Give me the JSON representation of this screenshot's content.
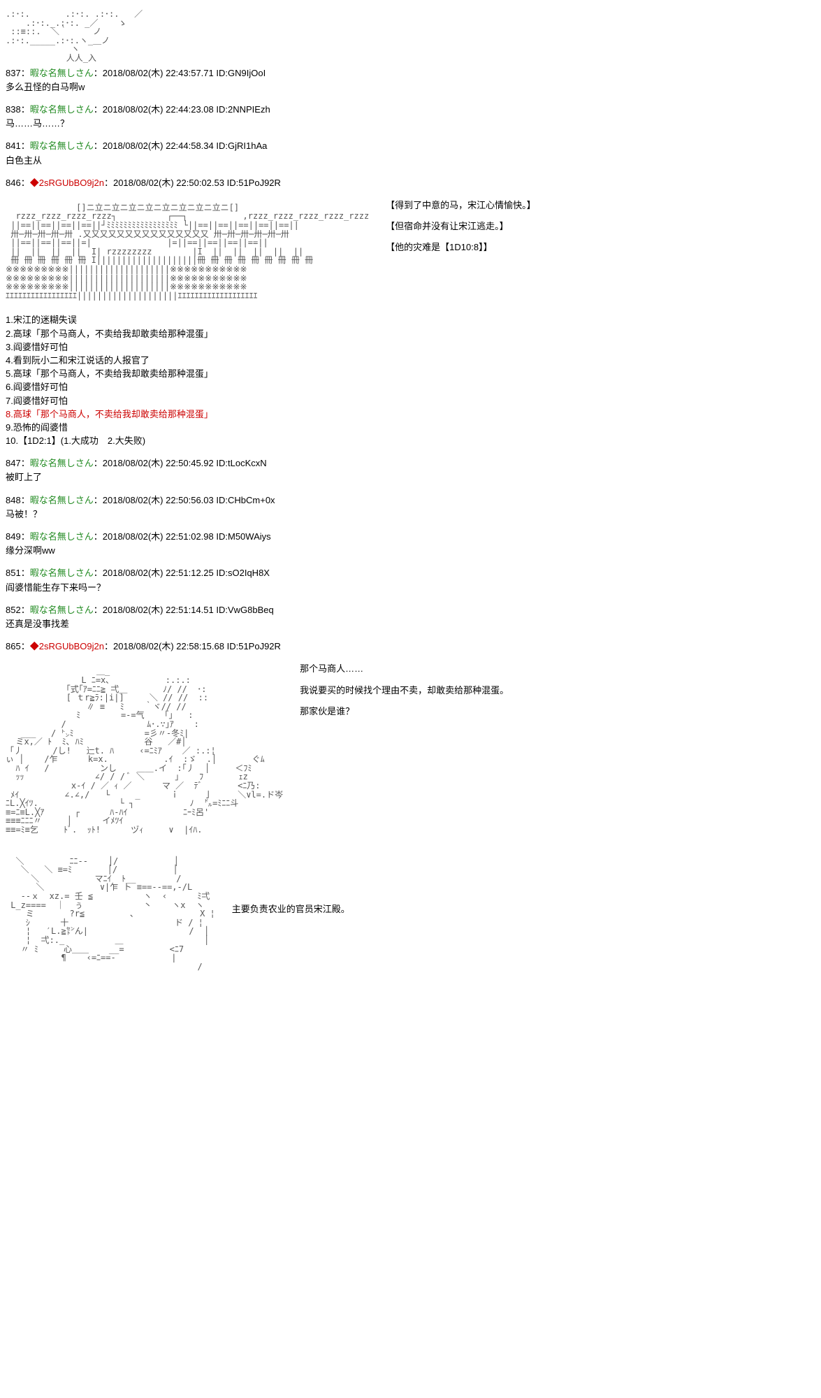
{
  "art_top": ".:･:.       .:･:. .:･:.   ／\n    .:･:._.:･:. _／    ゝ\n ::≡::.  ＼｀     ノ\n.:･:._____.:･:.ヽ_＿ノ\n             ヽ\n            人人_入",
  "posts": [
    {
      "num": "837",
      "name": "暇な名無しさん",
      "date": "2018/08/02(木) 22:43:57.71",
      "id": "ID:GN9IjOoI",
      "body": "多么丑怪的白马啊w"
    },
    {
      "num": "838",
      "name": "暇な名無しさん",
      "date": "2018/08/02(木) 22:44:23.08",
      "id": "ID:2NNPIEzh",
      "body": "马……马……？"
    },
    {
      "num": "841",
      "name": "暇な名無しさん",
      "date": "2018/08/02(木) 22:44:58.34",
      "id": "ID:GjRI1hAa",
      "body": "白色主从"
    }
  ],
  "post846": {
    "num": "846",
    "trip": "◆2sRGUbBO9j2n",
    "date": "2018/08/02(木) 22:50:02.53",
    "id": "ID:51PoJ92R"
  },
  "building_art": "              []ニ立ニ立ニ立ニ立ニ立ニ立ニ立ニ立ニ[]\n  rzzz_rzzz_rzzz_rzzz┐          ┌──┐           ,rzzz_rzzz_rzzz_rzzz_rzzz\n ||==||==||==||==||┘ﾐﾐﾐﾐﾐﾐﾐﾐﾐﾐﾐﾐﾐﾐﾐﾐﾐ └||==||==||==||==||==||\n 卅─卅─卅─卅─卅 .又又又又又又又又又又又又又又又 卅─卅─卅─卅─卅─卅\n ||==||==||==||=|               |=||==||==||==||==||\n ||  ||  ||  ||  I| rzzzzzzzz        |I  ||  ||  ||  ||  ||\n 冊 冊 冊 冊 冊 冊 I||||||||||||||||||||冊 冊 冊 冊 冊 冊 冊 冊 冊\n※※※※※※※※※||||||||||||||||||||※※※※※※※※※※※\n※※※※※※※※※||||||||||||||||||||※※※※※※※※※※※\n※※※※※※※※※||||||||||||||||||||※※※※※※※※※※※\nｴｴｴｴｴｴｴｴｴｴｴｴｴｴｴｴｴ||||||||||||||||||||ｴｴｴｴｴｴｴｴｴｴｴｴｴｴｴｴｴｴｴ",
  "side846": {
    "line1": "【得到了中意的马，宋江心情愉快。】",
    "line2": "【但宿命并没有让宋江逃走。】",
    "line3": "【他的灾难是【1D10:8】】"
  },
  "list": {
    "l1": "1.宋江的迷糊失误",
    "l2": "2.高球「那个马商人，不卖给我却敢卖给那种混蛋」",
    "l3": "3.阎婆惜好可怕",
    "l4": "4.看到阮小二和宋江说话的人报官了",
    "l5": "5.高球「那个马商人，不卖给我却敢卖给那种混蛋」",
    "l6": "6.阎婆惜好可怕",
    "l7": "7.阎婆惜好可怕",
    "l8": "8.高球「那个马商人，不卖给我却敢卖给那种混蛋」",
    "l9": "9.恐怖的阎婆惜",
    "l10": "10.【1D2:1】(1.大成功　2.大失败)"
  },
  "posts2": [
    {
      "num": "847",
      "name": "暇な名無しさん",
      "date": "2018/08/02(木) 22:50:45.92",
      "id": "ID:tLocKcxN",
      "body": "被盯上了"
    },
    {
      "num": "848",
      "name": "暇な名無しさん",
      "date": "2018/08/02(木) 22:50:56.03",
      "id": "ID:CHbCm+0x",
      "body": "马被！？"
    },
    {
      "num": "849",
      "name": "暇な名無しさん",
      "date": "2018/08/02(木) 22:51:02.98",
      "id": "ID:M50WAiys",
      "body": "缘分深啊ww"
    },
    {
      "num": "851",
      "name": "暇な名無しさん",
      "date": "2018/08/02(木) 22:51:12.25",
      "id": "ID:sO2IqH8X",
      "body": "阎婆惜能生存下来吗ー？"
    },
    {
      "num": "852",
      "name": "暇な名無しさん",
      "date": "2018/08/02(木) 22:51:14.51",
      "id": "ID:VwG8bBeq",
      "body": "还真是没事找差"
    }
  ],
  "post865": {
    "num": "865",
    "trip": "◆2sRGUbBO9j2n",
    "date": "2018/08/02(木) 22:58:15.68",
    "id": "ID:51PoJ92R"
  },
  "art865": "                  ＿_\n               L ﾆ=x､           :.:.:\n            ｢式｢ｱ=ﾆﾆ≧ 弌＿       ﾉ/ //  ･:\n            [ ｔr≧ﾗ:|i|]     ＼ // //  ::\n                ∥ ≡   ﾐ    ｀ヾ// //\n              ﾐ        =-=气    ｢｣   :\n           /                ﾑ･.∵｣ｱ    :\n   ___   / ㌧ﾐ              =彡〃-冬ﾐ|\n  ミx,／ ﾄ  ﾐ､ ﾊﾐ            谷   ／#│\n「丿      /し!   辷t. ﾊ     ‹=ﾆﾐｱ    ／ :.:¦\nぃ │    /乍      k=x.           .ｲ  :ゞ  .│       ぐﾑ\n  ﾊ ｲ   /          ンし    ＿＿.イ  :｢丿  │     ＜ﾌﾐ\n  ｯｯ              ∠/ / / ﾞ ＼      ｣    ﾌ       ｪz\n             x-ｲ / ／ ｨ ／      マ ／  ﾃﾞ       <ﾆ乃:\n ﾒｲ         ∠.∠,/   └     _      ｉ     亅     ＼∨l=.ド岑\nﾆL.╳ｲﾂ.                └ ┐           ﾉ  ㌦=ﾐﾆﾆ斗\n≡=ﾆ≡L.╳ｱ      ┌      ﾊ-ﾊｲ           ﾆｰﾐ呂'\n≡≡≡ﾆﾆﾆ〃     │      イﾒﾂｲ           \n≡≡=ﾐ≡乞     ﾄﾞ.  ｯﾄ!      ヅｨ     ∨  |ｲﾊ.",
  "side865": {
    "line1": "那个马商人……",
    "line2": "我说要买的时候找个理由不卖，却敢卖给那种混蛋。",
    "line3": "那家伙是谁？"
  },
  "art_bottom": "  ＼         ﾆﾆ--    │/           │\n   ＼   ＼ ≡=ﾐ       │/           │\n     ＼           マﾆｲ  ﾄ__        /\n      ＼           ∨|乍 ト ≡==--==,-/L\n   --ｘ  xz.= 壬 ≦          ヽ  ‹      ﾐ弌\n L_z====  ｜  ぅ            丶    ヽx  ヽ\n    ミ       ?r≦         ､             X ¦\n    ｼ      十                     ド / ¦\n    ¦   ′L.≧㌣ん|                    /  │\n    ¦  弌:._          ＿                │\n   〃 ﾐ     心＿＿    __=         <ﾆ7\n           ¶    ‹=ﾆ==-           |\n                                      /",
  "side_bottom": {
    "line1": "主要负责农业的官员宋江殿。"
  }
}
